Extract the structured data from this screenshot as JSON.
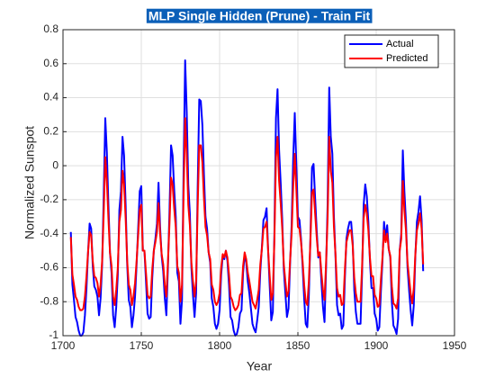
{
  "chart_data": {
    "type": "line",
    "title": "MLP Single Hidden (Prune) - Train Fit",
    "xlabel": "Year",
    "ylabel": "Normalized Sunspot",
    "x": [
      1705,
      1706,
      1707,
      1708,
      1709,
      1710,
      1711,
      1712,
      1713,
      1714,
      1715,
      1716,
      1717,
      1718,
      1719,
      1720,
      1721,
      1722,
      1723,
      1724,
      1725,
      1726,
      1727,
      1728,
      1729,
      1730,
      1731,
      1732,
      1733,
      1734,
      1735,
      1736,
      1737,
      1738,
      1739,
      1740,
      1741,
      1742,
      1743,
      1744,
      1745,
      1746,
      1747,
      1748,
      1749,
      1750,
      1751,
      1752,
      1753,
      1754,
      1755,
      1756,
      1757,
      1758,
      1759,
      1760,
      1761,
      1762,
      1763,
      1764,
      1765,
      1766,
      1767,
      1768,
      1769,
      1770,
      1771,
      1772,
      1773,
      1774,
      1775,
      1776,
      1777,
      1778,
      1779,
      1780,
      1781,
      1782,
      1783,
      1784,
      1785,
      1786,
      1787,
      1788,
      1789,
      1790,
      1791,
      1792,
      1793,
      1794,
      1795,
      1796,
      1797,
      1798,
      1799,
      1800,
      1801,
      1802,
      1803,
      1804,
      1805,
      1806,
      1807,
      1808,
      1809,
      1810,
      1811,
      1812,
      1813,
      1814,
      1815,
      1816,
      1817,
      1818,
      1819,
      1820,
      1821,
      1822,
      1823,
      1824,
      1825,
      1826,
      1827,
      1828,
      1829,
      1830,
      1831,
      1832,
      1833,
      1834,
      1835,
      1836,
      1837,
      1838,
      1839,
      1840,
      1841,
      1842,
      1843,
      1844,
      1845,
      1846,
      1847,
      1848,
      1849,
      1850,
      1851,
      1852,
      1853,
      1854,
      1855,
      1856,
      1857,
      1858,
      1859,
      1860,
      1861,
      1862,
      1863,
      1864,
      1865,
      1866,
      1867,
      1868,
      1869,
      1870,
      1871,
      1872,
      1873,
      1874,
      1875,
      1876,
      1877,
      1878,
      1879,
      1880,
      1881,
      1882,
      1883,
      1884,
      1885,
      1886,
      1887,
      1888,
      1889,
      1890,
      1891,
      1892,
      1893,
      1894,
      1895,
      1896,
      1897,
      1898,
      1899,
      1900,
      1901,
      1902,
      1903,
      1904,
      1905,
      1906,
      1907,
      1908,
      1909,
      1910,
      1911,
      1912,
      1913,
      1914,
      1915,
      1916,
      1917,
      1918,
      1919,
      1920,
      1921,
      1922,
      1923,
      1924,
      1925,
      1926,
      1927,
      1928,
      1929,
      1930
    ],
    "series": [
      {
        "name": "Actual",
        "color": "#0000ff",
        "values": [
          -0.39,
          -0.7,
          -0.79,
          -0.89,
          -0.92,
          -0.97,
          -1,
          -1,
          -0.98,
          -0.88,
          -0.72,
          -0.51,
          -0.34,
          -0.37,
          -0.59,
          -0.71,
          -0.73,
          -0.77,
          -0.88,
          -0.78,
          -0.58,
          -0.18,
          0.28,
          0.08,
          -0.23,
          -0.51,
          -0.63,
          -0.88,
          -0.95,
          -0.83,
          -0.64,
          -0.26,
          -0.15,
          0.17,
          0.06,
          -0.23,
          -0.58,
          -0.79,
          -0.83,
          -0.95,
          -0.88,
          -0.77,
          -0.58,
          -0.37,
          -0.15,
          -0.12,
          -0.5,
          -0.5,
          -0.68,
          -0.87,
          -0.9,
          -0.89,
          -0.66,
          -0.5,
          -0.43,
          -0.34,
          -0.1,
          -0.36,
          -0.53,
          -0.62,
          -0.78,
          -0.88,
          -0.6,
          -0.27,
          0.12,
          0.06,
          -0.14,
          -0.3,
          -0.63,
          -0.68,
          -0.93,
          -0.79,
          -0.03,
          0.62,
          0.32,
          -0.11,
          -0.28,
          -0.6,
          -0.76,
          -0.89,
          -0.75,
          -0.13,
          0.39,
          0.38,
          0.24,
          -0.05,
          -0.3,
          -0.37,
          -0.51,
          -0.57,
          -0.78,
          -0.83,
          -0.93,
          -0.96,
          -0.93,
          -0.85,
          -0.64,
          -0.53,
          -0.55,
          -0.5,
          -0.56,
          -0.7,
          -0.89,
          -0.91,
          -0.97,
          -1,
          -0.99,
          -0.95,
          -0.87,
          -0.85,
          -0.63,
          -0.52,
          -0.57,
          -0.68,
          -0.75,
          -0.84,
          -0.93,
          -0.96,
          -0.98,
          -0.91,
          -0.83,
          -0.62,
          -0.48,
          -0.32,
          -0.3,
          -0.25,
          -0.5,
          -0.71,
          -0.91,
          -0.86,
          -0.4,
          0.28,
          0.45,
          0.09,
          -0.1,
          -0.32,
          -0.61,
          -0.75,
          -0.89,
          -0.84,
          -0.58,
          -0.35,
          0.04,
          0.31,
          0.01,
          -0.3,
          -0.32,
          -0.43,
          -0.59,
          -0.78,
          -0.93,
          -0.95,
          -0.76,
          -0.42,
          -0.01,
          0.01,
          -0.19,
          -0.38,
          -0.54,
          -0.51,
          -0.68,
          -0.83,
          -0.92,
          -0.6,
          -0.22,
          0.46,
          0.17,
          0.07,
          -0.3,
          -0.53,
          -0.82,
          -0.88,
          -0.87,
          -0.96,
          -0.94,
          -0.66,
          -0.43,
          -0.37,
          -0.33,
          -0.33,
          -0.45,
          -0.73,
          -0.86,
          -0.93,
          -0.93,
          -0.93,
          -0.63,
          -0.23,
          -0.11,
          -0.18,
          -0.33,
          -0.56,
          -0.72,
          -0.72,
          -0.87,
          -0.9,
          -0.97,
          -0.95,
          -0.74,
          -0.56,
          -0.33,
          -0.43,
          -0.35,
          -0.49,
          -0.54,
          -0.8,
          -0.94,
          -0.96,
          -0.99,
          -0.9,
          -0.5,
          -0.4,
          0.09,
          -0.15,
          -0.33,
          -0.6,
          -0.73,
          -0.85,
          -0.94,
          -0.82,
          -0.53,
          -0.33,
          -0.27,
          -0.18,
          -0.32,
          -0.62
        ]
      },
      {
        "name": "Predicted",
        "color": "#ff0000",
        "values": [
          -0.42,
          -0.64,
          -0.7,
          -0.77,
          -0.79,
          -0.83,
          -0.85,
          -0.85,
          -0.84,
          -0.77,
          -0.65,
          -0.51,
          -0.39,
          -0.41,
          -0.56,
          -0.65,
          -0.66,
          -0.69,
          -0.77,
          -0.7,
          -0.56,
          -0.28,
          0.05,
          -0.09,
          -0.31,
          -0.51,
          -0.59,
          -0.77,
          -0.82,
          -0.73,
          -0.6,
          -0.33,
          -0.26,
          -0.03,
          -0.11,
          -0.31,
          -0.56,
          -0.7,
          -0.73,
          -0.82,
          -0.77,
          -0.69,
          -0.56,
          -0.41,
          -0.26,
          -0.23,
          -0.5,
          -0.5,
          -0.63,
          -0.76,
          -0.78,
          -0.77,
          -0.61,
          -0.5,
          -0.45,
          -0.39,
          -0.22,
          -0.4,
          -0.52,
          -0.58,
          -0.7,
          -0.77,
          -0.57,
          -0.34,
          -0.07,
          -0.11,
          -0.25,
          -0.36,
          -0.59,
          -0.63,
          -0.8,
          -0.7,
          -0.17,
          0.28,
          0.07,
          -0.23,
          -0.35,
          -0.57,
          -0.68,
          -0.77,
          -0.68,
          -0.24,
          0.12,
          0.12,
          0.02,
          -0.19,
          -0.36,
          -0.41,
          -0.51,
          -0.55,
          -0.7,
          -0.73,
          -0.8,
          -0.82,
          -0.8,
          -0.75,
          -0.6,
          -0.52,
          -0.54,
          -0.5,
          -0.54,
          -0.64,
          -0.77,
          -0.79,
          -0.83,
          -0.85,
          -0.84,
          -0.82,
          -0.76,
          -0.75,
          -0.59,
          -0.51,
          -0.55,
          -0.63,
          -0.68,
          -0.74,
          -0.8,
          -0.82,
          -0.84,
          -0.79,
          -0.73,
          -0.58,
          -0.49,
          -0.37,
          -0.36,
          -0.33,
          -0.5,
          -0.65,
          -0.79,
          -0.75,
          -0.43,
          0.05,
          0.17,
          -0.09,
          -0.22,
          -0.37,
          -0.58,
          -0.68,
          -0.77,
          -0.74,
          -0.56,
          -0.4,
          -0.12,
          0.07,
          -0.14,
          -0.36,
          -0.37,
          -0.45,
          -0.56,
          -0.7,
          -0.8,
          -0.82,
          -0.68,
          -0.44,
          -0.16,
          -0.14,
          -0.28,
          -0.42,
          -0.53,
          -0.51,
          -0.63,
          -0.73,
          -0.79,
          -0.57,
          -0.3,
          0.17,
          -0.03,
          -0.1,
          -0.36,
          -0.52,
          -0.72,
          -0.77,
          -0.76,
          -0.82,
          -0.81,
          -0.61,
          -0.45,
          -0.41,
          -0.38,
          -0.38,
          -0.47,
          -0.66,
          -0.75,
          -0.8,
          -0.8,
          -0.8,
          -0.59,
          -0.31,
          -0.23,
          -0.28,
          -0.38,
          -0.54,
          -0.65,
          -0.65,
          -0.76,
          -0.78,
          -0.83,
          -0.82,
          -0.67,
          -0.54,
          -0.38,
          -0.45,
          -0.4,
          -0.49,
          -0.53,
          -0.71,
          -0.81,
          -0.82,
          -0.84,
          -0.78,
          -0.5,
          -0.43,
          -0.09,
          -0.26,
          -0.38,
          -0.57,
          -0.66,
          -0.75,
          -0.81,
          -0.72,
          -0.52,
          -0.38,
          -0.34,
          -0.28,
          -0.37,
          -0.58
        ]
      }
    ],
    "xlim": [
      1700,
      1950
    ],
    "xticks": [
      1700,
      1750,
      1800,
      1850,
      1900,
      1950
    ],
    "ylim": [
      -1,
      0.8
    ],
    "yticks": [
      -1,
      -0.8,
      -0.6,
      -0.4,
      -0.2,
      0,
      0.2,
      0.4,
      0.6,
      0.8
    ],
    "grid": true,
    "legend": "northeast"
  }
}
